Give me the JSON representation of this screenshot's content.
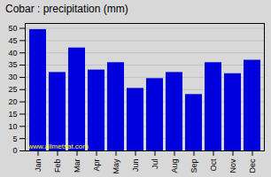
{
  "chart_data": {
    "type": "bar",
    "title": "Cobar : precipitation (mm)",
    "categories": [
      "Jan",
      "Feb",
      "Mar",
      "Apr",
      "May",
      "Jun",
      "Jul",
      "Aug",
      "Sep",
      "Oct",
      "Nov",
      "Dec"
    ],
    "values": [
      49.5,
      32,
      42,
      33,
      36,
      25.5,
      29.5,
      32,
      23,
      36,
      31.5,
      37
    ],
    "color": "#0000dd",
    "ylim": [
      0,
      52
    ],
    "yticks": [
      0,
      5,
      10,
      15,
      20,
      25,
      30,
      35,
      40,
      45,
      50
    ],
    "grid": true,
    "annotation": "www.allmetsat.com"
  }
}
